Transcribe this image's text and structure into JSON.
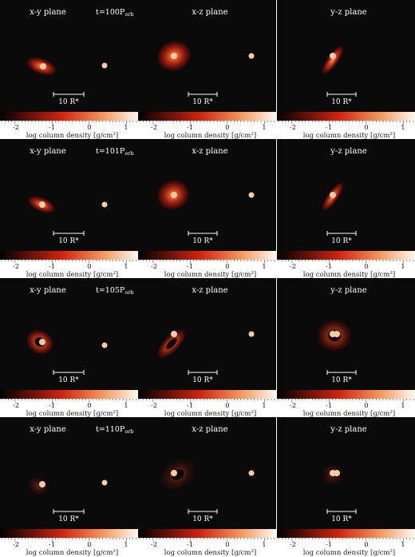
{
  "figure": {
    "colorbar_label": "log column density [g/cm²]",
    "colorbar_ticks": [
      "-2",
      "-1",
      "0",
      "1"
    ],
    "scale_bar_label": "10 R*",
    "colors": {
      "background": "#0a0a0a",
      "disk_outer": "#b8160a",
      "disk_mid": "#e04a1c",
      "disk_inner": "#ff9a5a",
      "star": "#f7c9a8",
      "star_core": "#ffe8d8",
      "colorbar_start": "#000000",
      "colorbar_mid": "#d02410",
      "colorbar_end": "#fff8f0",
      "text": "#ffffff"
    },
    "rows": [
      {
        "time": "t=100P",
        "time_sub": "orb",
        "panels": [
          {
            "plane": "x-y plane"
          },
          {
            "plane": "x-z plane"
          },
          {
            "plane": "y-z plane"
          }
        ]
      },
      {
        "time": "t=101P",
        "time_sub": "orb",
        "panels": [
          {
            "plane": "x-y plane"
          },
          {
            "plane": "x-z plane"
          },
          {
            "plane": "y-z plane"
          }
        ]
      },
      {
        "time": "t=105P",
        "time_sub": "orb",
        "panels": [
          {
            "plane": "x-y plane"
          },
          {
            "plane": "x-z plane"
          },
          {
            "plane": "y-z plane"
          }
        ]
      },
      {
        "time": "t=110P",
        "time_sub": "orb",
        "panels": [
          {
            "plane": "x-y plane"
          },
          {
            "plane": "x-z plane"
          },
          {
            "plane": "y-z plane"
          }
        ]
      }
    ]
  }
}
